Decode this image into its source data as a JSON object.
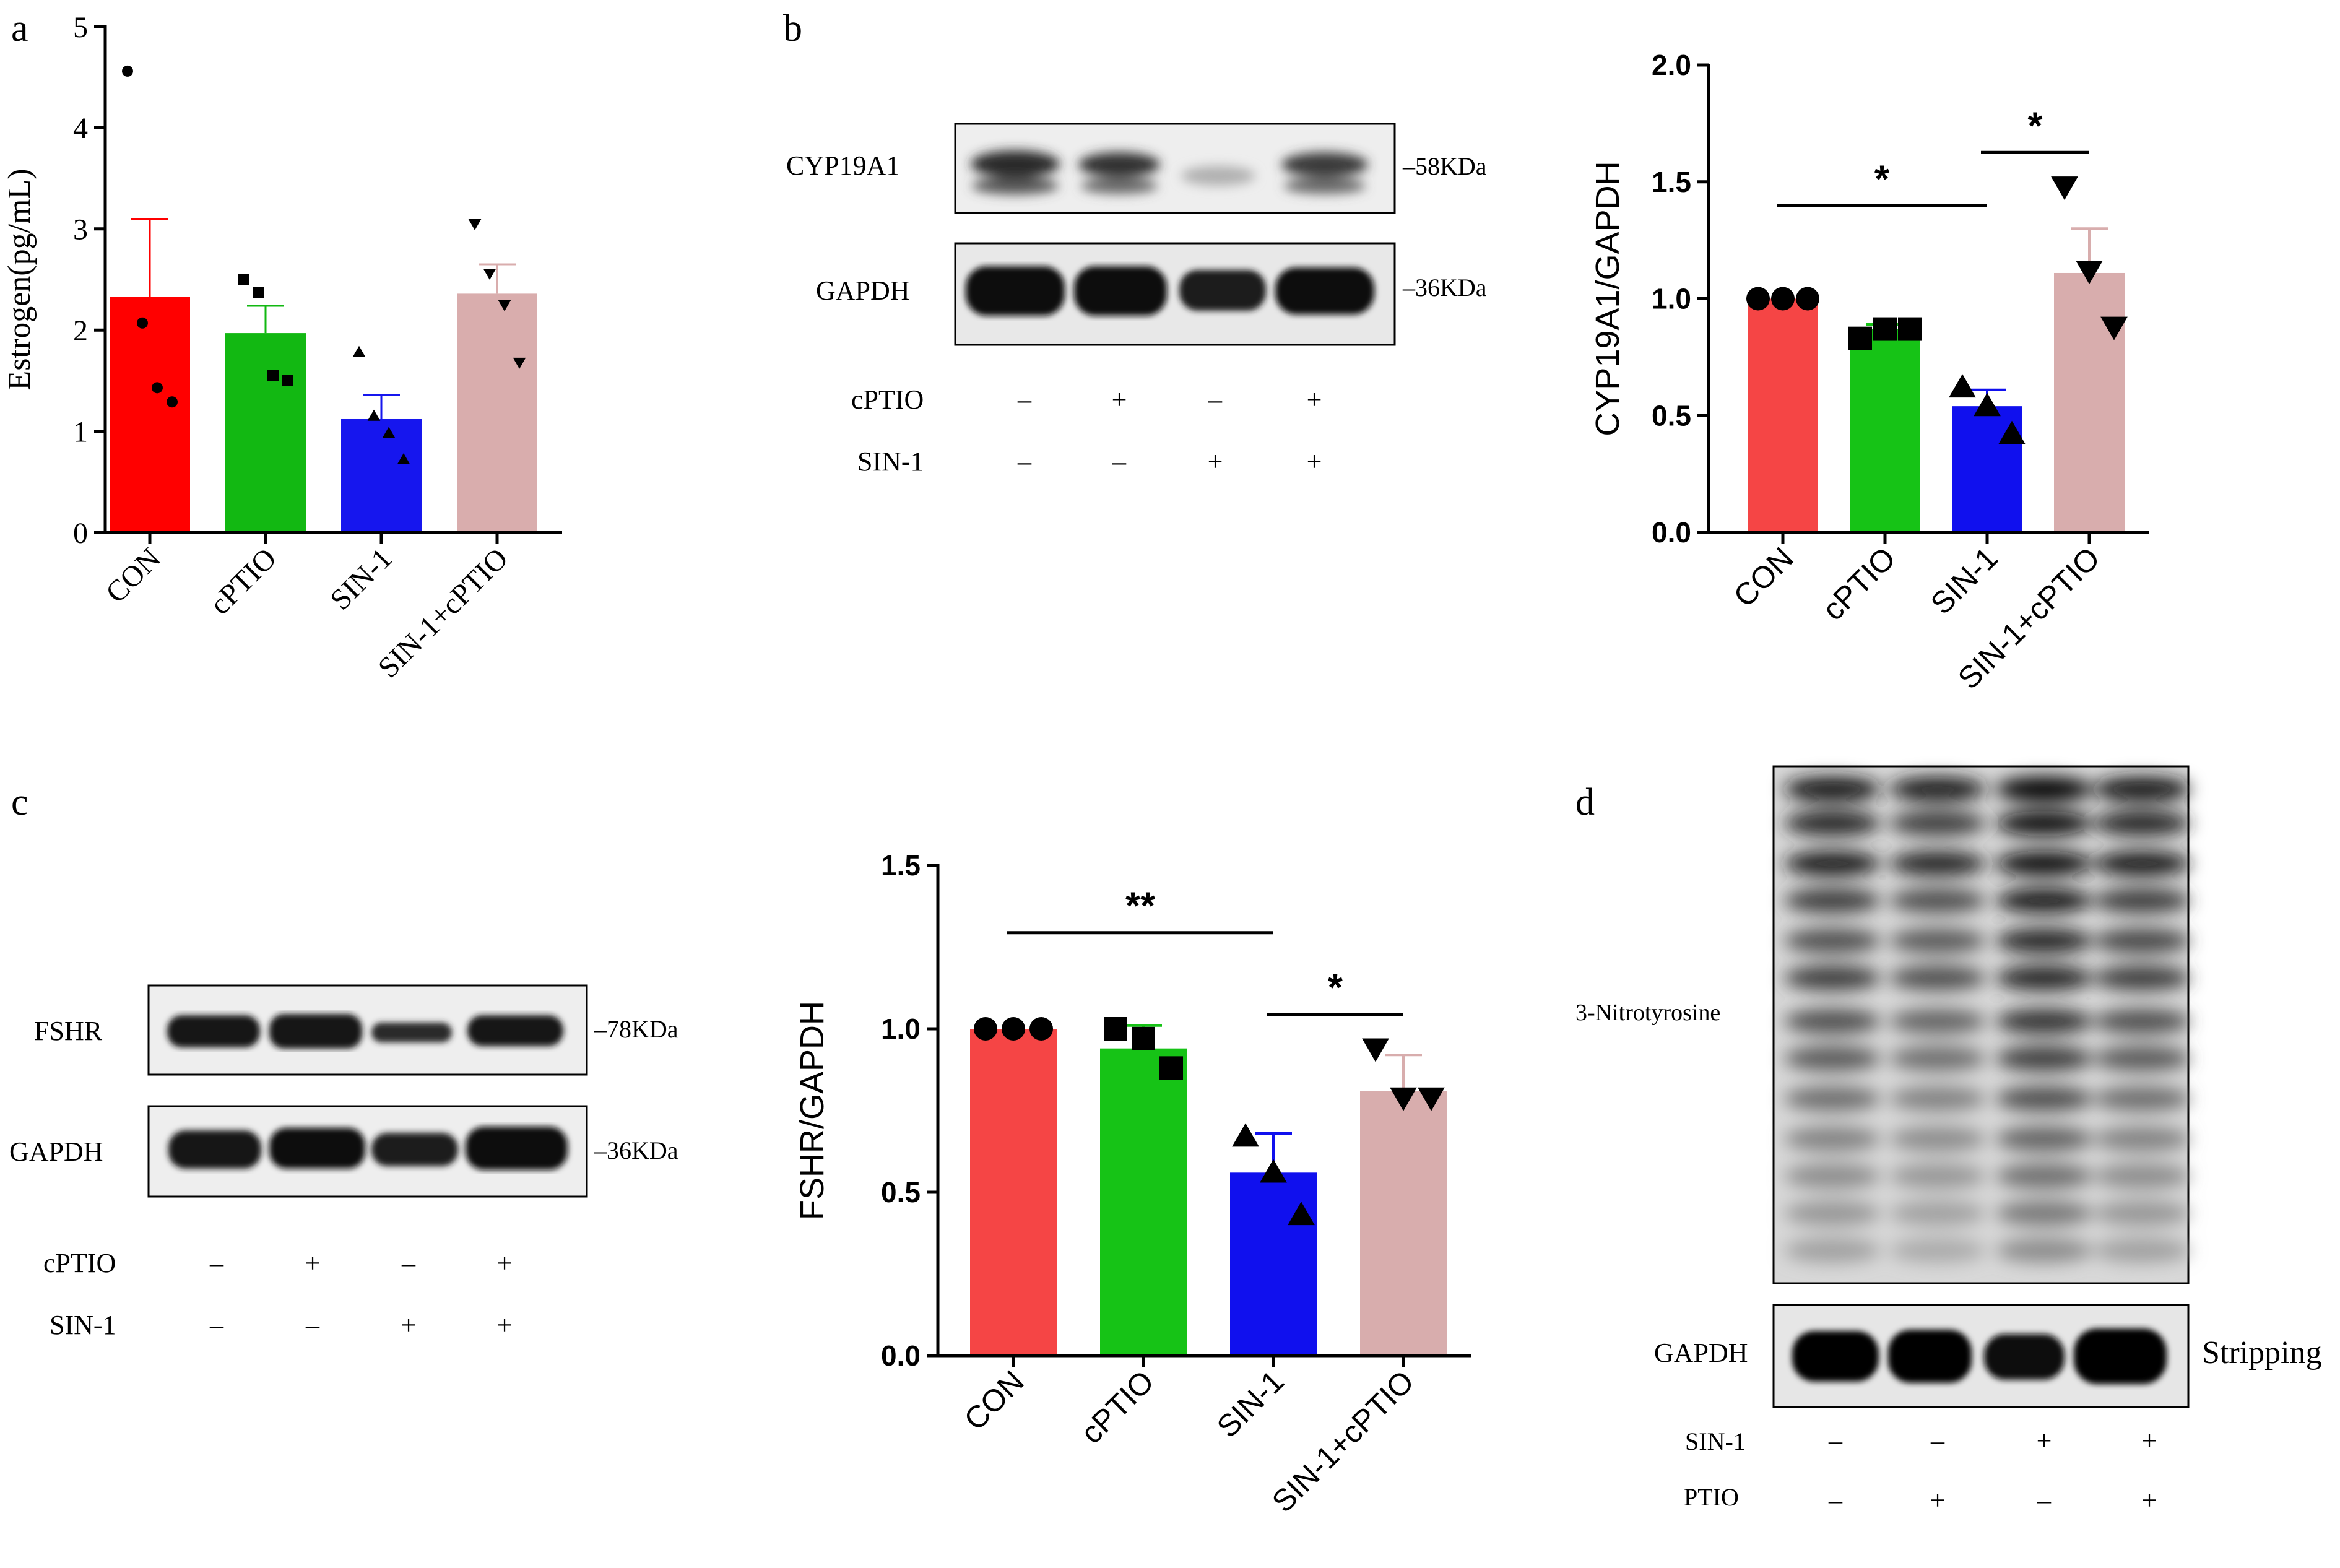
{
  "panel_labels": {
    "a": "a",
    "b": "b",
    "c": "c",
    "d": "d"
  },
  "chart_data": [
    {
      "panel": "a",
      "type": "bar",
      "categories": [
        "CON",
        "cPTIO",
        "SIN-1",
        "SIN-1+cPTIO"
      ],
      "values": [
        2.33,
        1.97,
        1.12,
        2.36
      ],
      "errors": [
        0.77,
        0.27,
        0.24,
        0.29
      ],
      "points": [
        [
          4.56,
          2.07,
          1.43,
          1.29
        ],
        [
          2.5,
          2.37,
          1.55,
          1.5
        ],
        [
          1.78,
          1.15,
          0.98,
          0.72
        ],
        [
          3.05,
          2.56,
          2.25,
          1.68
        ]
      ],
      "markers": [
        "circle",
        "square",
        "triangle-up",
        "triangle-down"
      ],
      "colors": [
        "#ff0000",
        "#12b812",
        "#1616ee",
        "#d9adad"
      ],
      "ylabel": "Estrogen(pg/mL)",
      "ylim": [
        0,
        5
      ],
      "yticks": [
        "0",
        "1",
        "2",
        "3",
        "4",
        "5"
      ],
      "significance": []
    },
    {
      "panel": "b",
      "type": "bar",
      "categories": [
        "CON",
        "cPTIO",
        "SIN-1",
        "SIN-1+cPTIO"
      ],
      "values": [
        1.0,
        0.87,
        0.54,
        1.11
      ],
      "errors": [
        0.0,
        0.02,
        0.07,
        0.19
      ],
      "points": [
        [
          1.0,
          1.0,
          1.0
        ],
        [
          0.83,
          0.87,
          0.87
        ],
        [
          0.62,
          0.54,
          0.42
        ],
        [
          1.48,
          1.12,
          0.88
        ]
      ],
      "markers": [
        "circle",
        "square",
        "triangle-up",
        "triangle-down"
      ],
      "colors": [
        "#f54545",
        "#16c316",
        "#1010ee",
        "#d8adad"
      ],
      "ylabel": "CYP19A1/GAPDH",
      "ylim": [
        0,
        2.0
      ],
      "yticks": [
        "0.0",
        "0.5",
        "1.0",
        "1.5",
        "2.0"
      ],
      "significance": [
        {
          "from": 0,
          "to": 2,
          "label": "*"
        },
        {
          "from": 2,
          "to": 3,
          "label": "*"
        }
      ]
    },
    {
      "panel": "c",
      "type": "bar",
      "categories": [
        "CON",
        "cPTIO",
        "SIN-1",
        "SIN-1+cPTIO"
      ],
      "values": [
        1.0,
        0.94,
        0.56,
        0.81
      ],
      "errors": [
        0.0,
        0.07,
        0.12,
        0.11
      ],
      "points": [
        [
          1.0,
          1.0,
          1.0
        ],
        [
          1.0,
          0.97,
          0.88
        ],
        [
          0.67,
          0.56,
          0.43
        ],
        [
          0.94,
          0.79,
          0.79
        ]
      ],
      "markers": [
        "circle",
        "square",
        "triangle-up",
        "triangle-down"
      ],
      "colors": [
        "#f54545",
        "#16c316",
        "#1010ee",
        "#d8adad"
      ],
      "ylabel": "FSHR/GAPDH",
      "ylim": [
        0,
        1.5
      ],
      "yticks": [
        "0.0",
        "0.5",
        "1.0",
        "1.5"
      ],
      "significance": [
        {
          "from": 0,
          "to": 2,
          "label": "**"
        },
        {
          "from": 2,
          "to": 3,
          "label": "*"
        }
      ]
    }
  ],
  "blots": {
    "b": {
      "rows": [
        {
          "label": "CYP19A1",
          "size": "‒58KDa"
        },
        {
          "label": "GAPDH",
          "size": "‒36KDa"
        }
      ],
      "treatments": [
        {
          "label": "cPTIO",
          "signs": [
            "‒",
            "+",
            "‒",
            "+"
          ]
        },
        {
          "label": "SIN-1",
          "signs": [
            "‒",
            "‒",
            "+",
            "+"
          ]
        }
      ]
    },
    "c": {
      "rows": [
        {
          "label": "FSHR",
          "size": "‒78KDa"
        },
        {
          "label": "GAPDH",
          "size": "‒36KDa"
        }
      ],
      "treatments": [
        {
          "label": "cPTIO",
          "signs": [
            "‒",
            "+",
            "‒",
            "+"
          ]
        },
        {
          "label": "SIN-1",
          "signs": [
            "‒",
            "‒",
            "+",
            "+"
          ]
        }
      ]
    },
    "d": {
      "main_label": "3-Nitrotyrosine",
      "loading_label": "GAPDH",
      "note": "Stripping",
      "treatments": [
        {
          "label": "SIN-1",
          "signs": [
            "‒",
            "‒",
            "+",
            "+"
          ]
        },
        {
          "label": "PTIO",
          "signs": [
            "‒",
            "+",
            "‒",
            "+"
          ]
        }
      ]
    }
  }
}
